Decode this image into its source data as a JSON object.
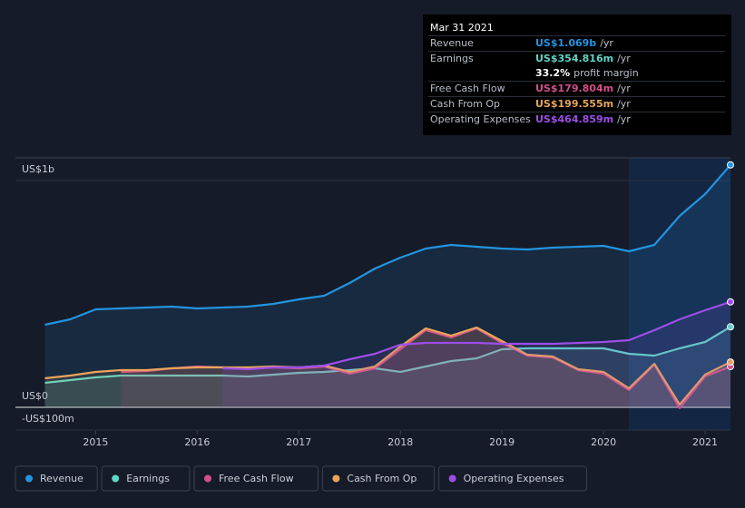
{
  "chart_data": {
    "type": "line",
    "x": [
      2014.5,
      2014.75,
      2015,
      2015.25,
      2015.5,
      2015.75,
      2016,
      2016.25,
      2016.5,
      2016.75,
      2017,
      2017.25,
      2017.5,
      2017.75,
      2018,
      2018.25,
      2018.5,
      2018.75,
      2019,
      2019.25,
      2019.5,
      2019.75,
      2020,
      2020.25,
      2020.5,
      2020.75,
      2021,
      2021.25
    ],
    "series": [
      {
        "name": "Revenue",
        "color": "#2394df",
        "values": [
          364,
          388,
          432,
          436,
          440,
          444,
          436,
          440,
          444,
          456,
          476,
          492,
          548,
          612,
          660,
          700,
          716,
          708,
          700,
          696,
          704,
          708,
          712,
          688,
          716,
          844,
          940,
          1069
        ]
      },
      {
        "name": "Earnings",
        "color": "#5fd6c6",
        "values": [
          108,
          120,
          132,
          140,
          140,
          140,
          140,
          140,
          136,
          144,
          152,
          156,
          164,
          172,
          156,
          180,
          204,
          216,
          256,
          260,
          260,
          260,
          260,
          236,
          228,
          260,
          288,
          354.8
        ]
      },
      {
        "name": "Free Cash Flow",
        "color": "#d24f8c",
        "values": [
          null,
          null,
          null,
          156,
          160,
          172,
          180,
          176,
          172,
          176,
          172,
          180,
          148,
          172,
          256,
          340,
          308,
          348,
          284,
          228,
          220,
          164,
          148,
          76,
          188,
          -4,
          136,
          179.8
        ]
      },
      {
        "name": "Cash From Op",
        "color": "#e9a55c",
        "values": [
          128,
          140,
          156,
          164,
          164,
          172,
          176,
          176,
          176,
          180,
          176,
          184,
          156,
          180,
          268,
          348,
          316,
          352,
          292,
          232,
          224,
          168,
          156,
          84,
          192,
          12,
          144,
          199.6
        ]
      },
      {
        "name": "Operating Expenses",
        "color": "#9d4ee9",
        "values": [
          null,
          null,
          null,
          null,
          null,
          null,
          null,
          172,
          168,
          176,
          176,
          184,
          212,
          236,
          276,
          284,
          284,
          284,
          280,
          280,
          280,
          284,
          288,
          296,
          340,
          388,
          428,
          464.9
        ]
      }
    ],
    "xlim": [
      2014.21,
      2021.25
    ],
    "xticks": [
      2015,
      2016,
      2017,
      2018,
      2019,
      2020,
      2021
    ],
    "ylim": [
      -104,
      1100
    ],
    "yticks": [
      {
        "value": 1000,
        "label": "US$1b"
      },
      {
        "value": 0,
        "label": "US$0"
      },
      {
        "value": -100,
        "label": "-US$100m"
      }
    ],
    "grid": true
  },
  "tooltip": {
    "date": "Mar 31 2021",
    "rows": [
      {
        "label": "Revenue",
        "value": "US$1.069b",
        "unit": "/yr"
      },
      {
        "label": "Earnings",
        "value": "US$354.816m",
        "unit": "/yr"
      },
      {
        "label": "Free Cash Flow",
        "value": "US$179.804m",
        "unit": "/yr"
      },
      {
        "label": "Cash From Op",
        "value": "US$199.555m",
        "unit": "/yr"
      },
      {
        "label": "Operating Expenses",
        "value": "US$464.859m",
        "unit": "/yr"
      }
    ],
    "margin": {
      "value": "33.2%",
      "text": "profit margin"
    }
  }
}
